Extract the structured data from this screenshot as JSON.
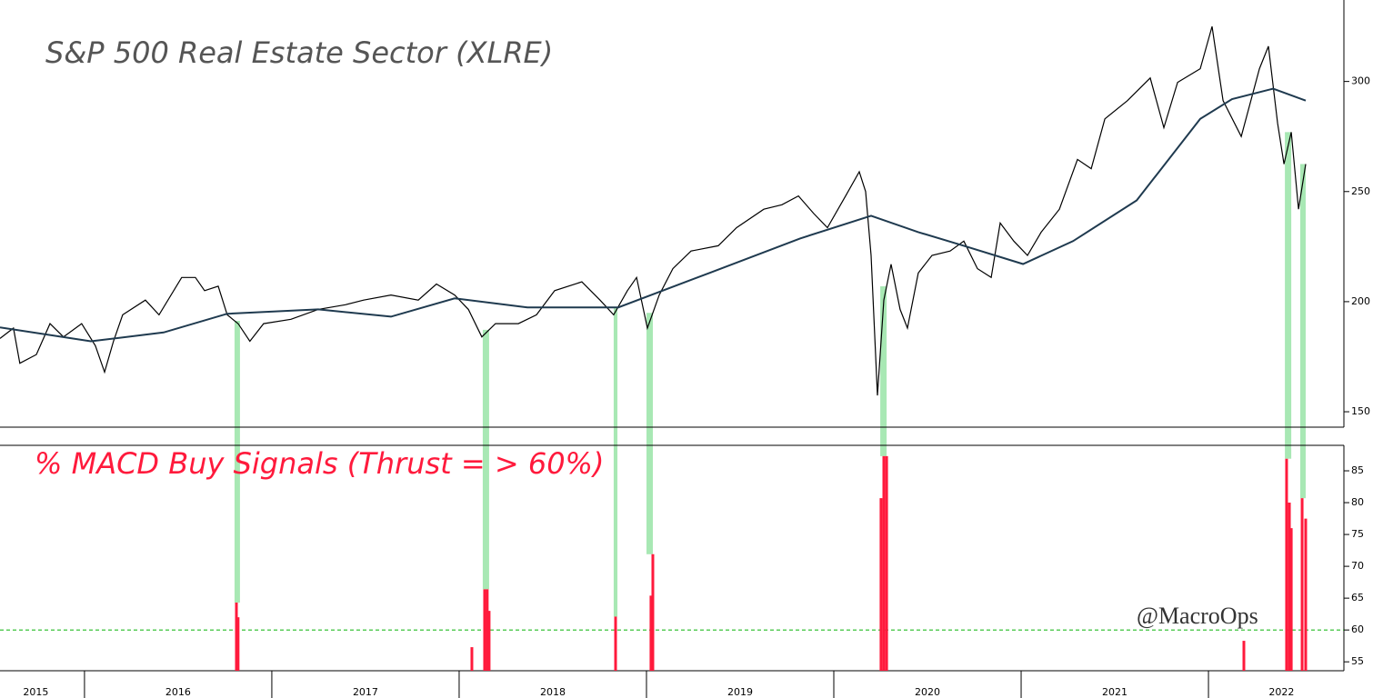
{
  "chart_data": [
    {
      "type": "line",
      "title": "S&P 500 Real Estate Sector (XLRE)",
      "xlim": [
        2015.549,
        2022.723
      ],
      "ylim": [
        143,
        337
      ],
      "yticks": [
        150,
        200,
        250,
        300
      ],
      "xticks": [
        2016,
        2017,
        2018,
        2019,
        2020,
        2021,
        2022
      ],
      "xtick_labels": [
        {
          "value": 2015.74,
          "label": "2015"
        },
        {
          "value": 2016.5,
          "label": "2016"
        },
        {
          "value": 2017.5,
          "label": "2017"
        },
        {
          "value": 2018.5,
          "label": "2018"
        },
        {
          "value": 2019.5,
          "label": "2019"
        },
        {
          "value": 2020.5,
          "label": "2020"
        },
        {
          "value": 2021.5,
          "label": "2021"
        },
        {
          "value": 2022.39,
          "label": "2022"
        }
      ],
      "series": [
        {
          "color": "#000000",
          "x": [
            2015.549,
            2015.621,
            2015.655,
            2015.743,
            2015.816,
            2015.888,
            2015.985,
            2016.058,
            2016.107,
            2016.155,
            2016.204,
            2016.325,
            2016.398,
            2016.519,
            2016.592,
            2016.641,
            2016.714,
            2016.762,
            2016.82,
            2016.883,
            2016.956,
            2017.102,
            2017.248,
            2017.393,
            2017.49,
            2017.636,
            2017.782,
            2017.879,
            2017.976,
            2018.049,
            2018.121,
            2018.194,
            2018.316,
            2018.413,
            2018.51,
            2018.655,
            2018.752,
            2018.825,
            2018.898,
            2018.947,
            2019.005,
            2019.068,
            2019.141,
            2019.238,
            2019.383,
            2019.481,
            2019.626,
            2019.723,
            2019.811,
            2019.893,
            2019.966,
            2020.063,
            2020.136,
            2020.17,
            2020.199,
            2020.233,
            2020.267,
            2020.306,
            2020.354,
            2020.393,
            2020.451,
            2020.524,
            2020.621,
            2020.694,
            2020.767,
            2020.84,
            2020.888,
            2020.961,
            2021.034,
            2021.107,
            2021.204,
            2021.301,
            2021.374,
            2021.447,
            2021.568,
            2021.689,
            2021.762,
            2021.835,
            2021.956,
            2022.019,
            2022.078,
            2022.175,
            2022.272,
            2022.32,
            2022.369,
            2022.403,
            2022.442,
            2022.481,
            2022.519
          ],
          "values": [
            183.3,
            188,
            172,
            176,
            190,
            184,
            190,
            180,
            168,
            182,
            194,
            200.7,
            194,
            211,
            211,
            205,
            207,
            194,
            190,
            182,
            190,
            192,
            196.5,
            198.6,
            200.7,
            203,
            200.7,
            208,
            203,
            196.5,
            184,
            190,
            190,
            194,
            205,
            209,
            200.7,
            194,
            205,
            211,
            188,
            203,
            215,
            223,
            225.4,
            233.6,
            242,
            244,
            248,
            240,
            233.6,
            248,
            259,
            250,
            221,
            157.4,
            200.7,
            217,
            196.5,
            188,
            213,
            221,
            223,
            227.5,
            215,
            211,
            235.7,
            227.5,
            221,
            231.6,
            242,
            264.6,
            260.4,
            283,
            291.3,
            301.6,
            279,
            299.6,
            305.8,
            325,
            291.3,
            275,
            305.8,
            316,
            281,
            262.5,
            277,
            242,
            262.5
          ]
        },
        {
          "color": "#1f3a4f",
          "x": [
            2015.549,
            2016.034,
            2016.422,
            2016.762,
            2017.248,
            2017.636,
            2017.976,
            2018.364,
            2018.85,
            2019.335,
            2019.82,
            2020.199,
            2020.451,
            2020.694,
            2021.01,
            2021.277,
            2021.617,
            2021.956,
            2022.126,
            2022.345,
            2022.519
          ],
          "values": [
            188.3,
            182,
            186,
            194.5,
            196.5,
            193.2,
            201.5,
            197.4,
            197.4,
            213,
            228.7,
            239,
            231.6,
            225.4,
            217.1,
            227.5,
            246,
            283,
            292,
            296.7,
            291.3
          ]
        }
      ]
    },
    {
      "type": "spikes",
      "title": "% MACD Buy Signals (Thrust = > 60%)",
      "annotation": "@MacroOps",
      "ylim": [
        53.6,
        89
      ],
      "yticks": [
        55,
        60,
        65,
        70,
        75,
        80,
        85
      ],
      "threshold": 60,
      "threshold_color": "#22bb22",
      "color": "#ff1a3c",
      "signal_color": "#a8e8b4",
      "x": [
        2016.811,
        2016.82,
        2018.068,
        2018.136,
        2018.15,
        2018.16,
        2018.835,
        2019.024,
        2019.034,
        2020.252,
        2020.267,
        2020.282,
        2022.189,
        2022.417,
        2022.432,
        2022.442,
        2022.5,
        2022.519
      ],
      "values": [
        64.3,
        62,
        57.3,
        66.4,
        66.4,
        63,
        62.1,
        65.4,
        71.9,
        80.7,
        87.3,
        87.3,
        58.3,
        86.9,
        80,
        76,
        80.7,
        77.5
      ],
      "signal_periods": [
        [
          2016.801,
          2016.83
        ],
        [
          2018.126,
          2018.16
        ],
        [
          2018.825,
          2018.845
        ],
        [
          2019.0,
          2019.034
        ],
        [
          2020.248,
          2020.282
        ],
        [
          2022.408,
          2022.442
        ],
        [
          2022.49,
          2022.519
        ]
      ]
    }
  ]
}
